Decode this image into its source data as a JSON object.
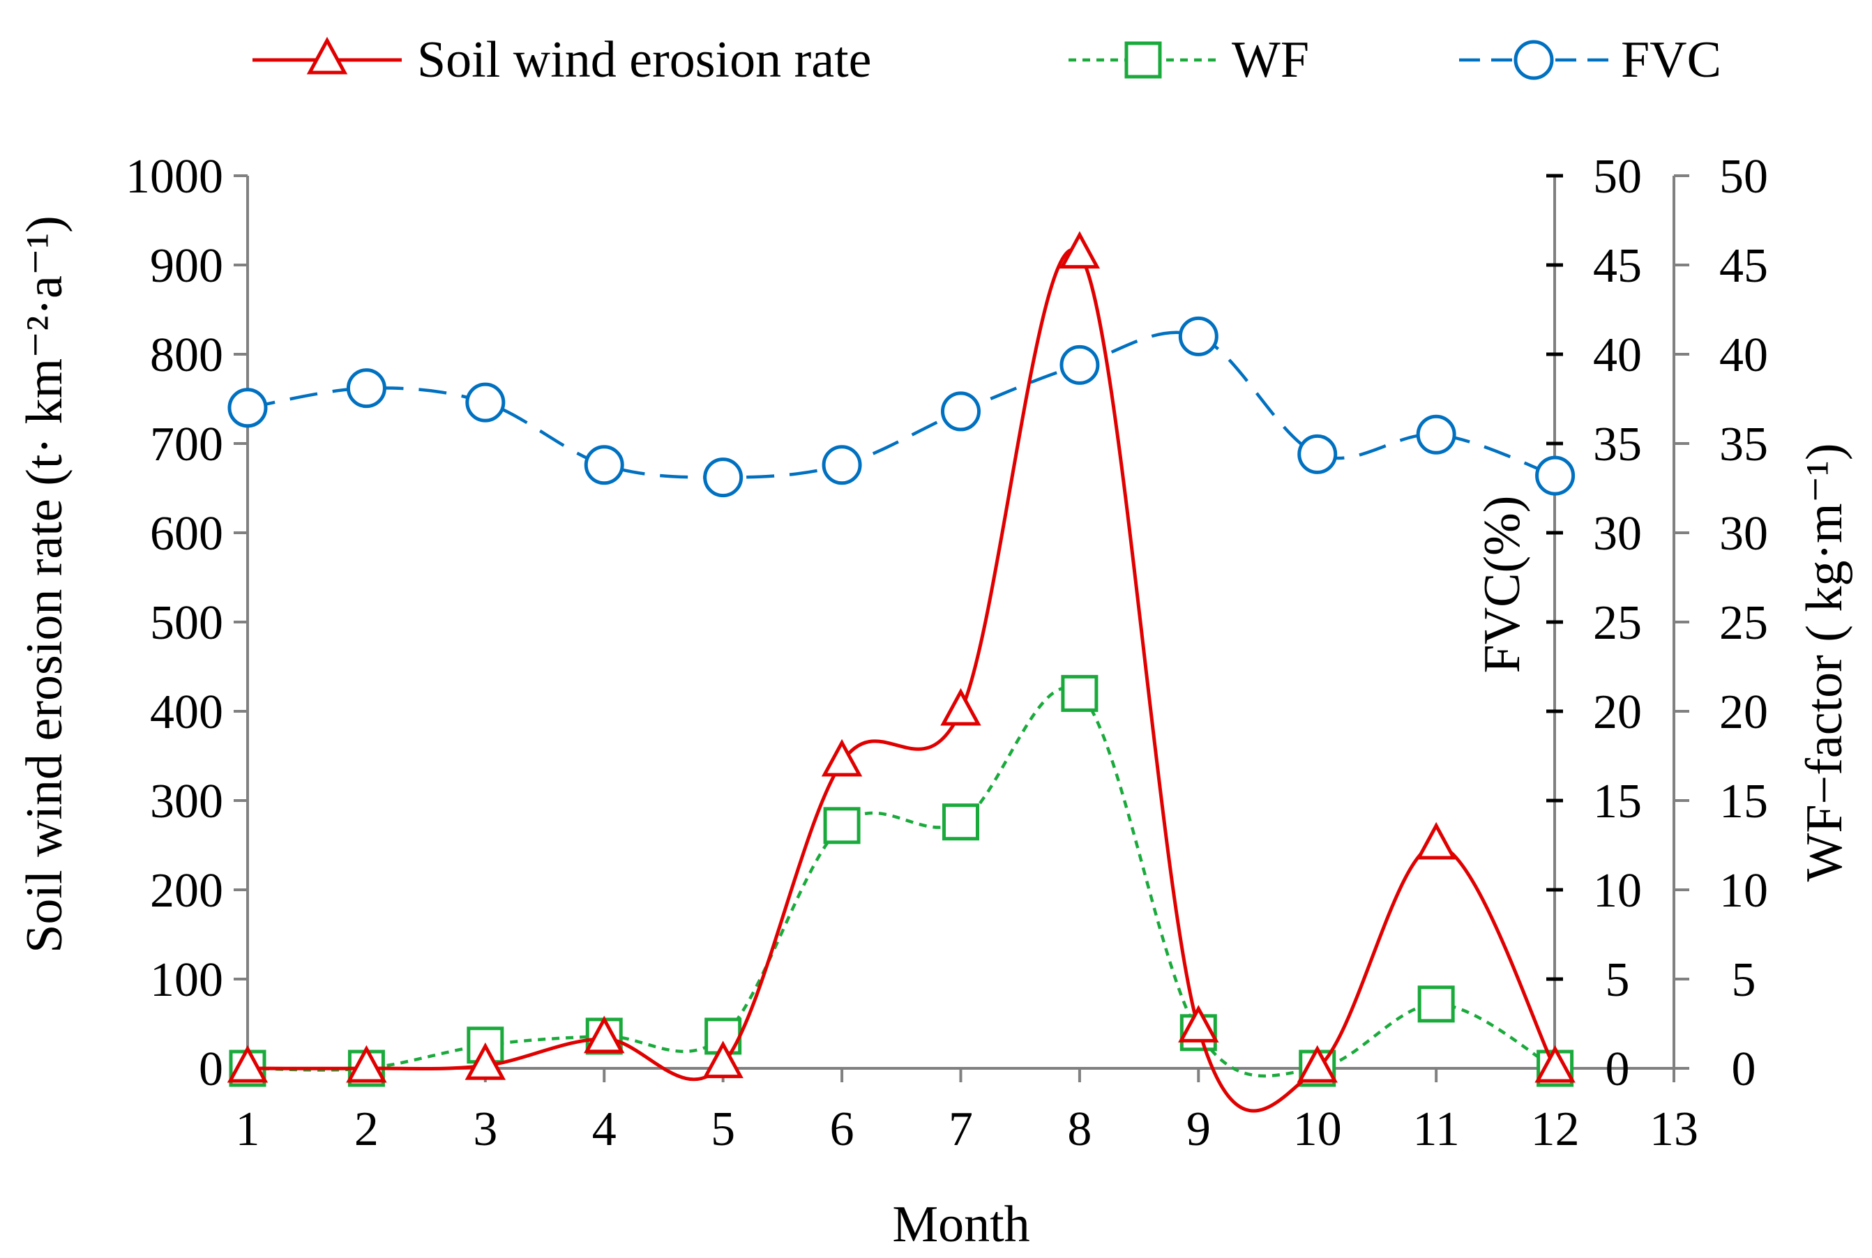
{
  "chart_data": {
    "type": "line",
    "title": "",
    "x": [
      1,
      2,
      3,
      4,
      5,
      6,
      7,
      8,
      9,
      10,
      11,
      12
    ],
    "xlabel": "Month",
    "xlim": [
      1,
      13
    ],
    "xticks": [
      "1",
      "2",
      "3",
      "4",
      "5",
      "6",
      "7",
      "8",
      "9",
      "10",
      "11",
      "12",
      "13"
    ],
    "ylabel": "Soil wind erosion rate (t· km⁻²·a⁻¹)",
    "ylim": [
      0,
      1000
    ],
    "yticks": [
      "0",
      "100",
      "200",
      "300",
      "400",
      "500",
      "600",
      "700",
      "800",
      "900",
      "1000"
    ],
    "y2label": "FVC(%)",
    "y2lim": [
      0,
      50
    ],
    "y2ticks": [
      "0",
      "5",
      "10",
      "15",
      "20",
      "25",
      "30",
      "35",
      "40",
      "45",
      "50"
    ],
    "y3label": "WF−factor ( kg·m⁻¹)",
    "y3lim": [
      0,
      50
    ],
    "y3ticks": [
      "0",
      "5",
      "10",
      "15",
      "20",
      "25",
      "30",
      "35",
      "40",
      "45",
      "50"
    ],
    "grid": false,
    "legend_position": "top",
    "series": [
      {
        "name": "Soil wind erosion rate",
        "axis": "left",
        "color": "#e00000",
        "line_style": "solid",
        "marker": "triangle",
        "values": [
          0,
          0,
          3,
          33,
          5,
          343,
          400,
          912,
          45,
          0,
          250,
          0
        ]
      },
      {
        "name": "WF",
        "axis": "right-outer",
        "color": "#1aaa3c",
        "line_style": "dotted",
        "marker": "square",
        "values": [
          0,
          0,
          1.3,
          1.8,
          1.8,
          13.6,
          13.8,
          21,
          2,
          0,
          3.6,
          0
        ]
      },
      {
        "name": "FVC",
        "axis": "right-inner",
        "color": "#0070c0",
        "line_style": "dashed",
        "marker": "circle",
        "values": [
          37,
          38.1,
          37.3,
          33.8,
          33.1,
          33.8,
          36.8,
          39.4,
          41,
          34.4,
          35.5,
          33.2
        ]
      }
    ]
  }
}
